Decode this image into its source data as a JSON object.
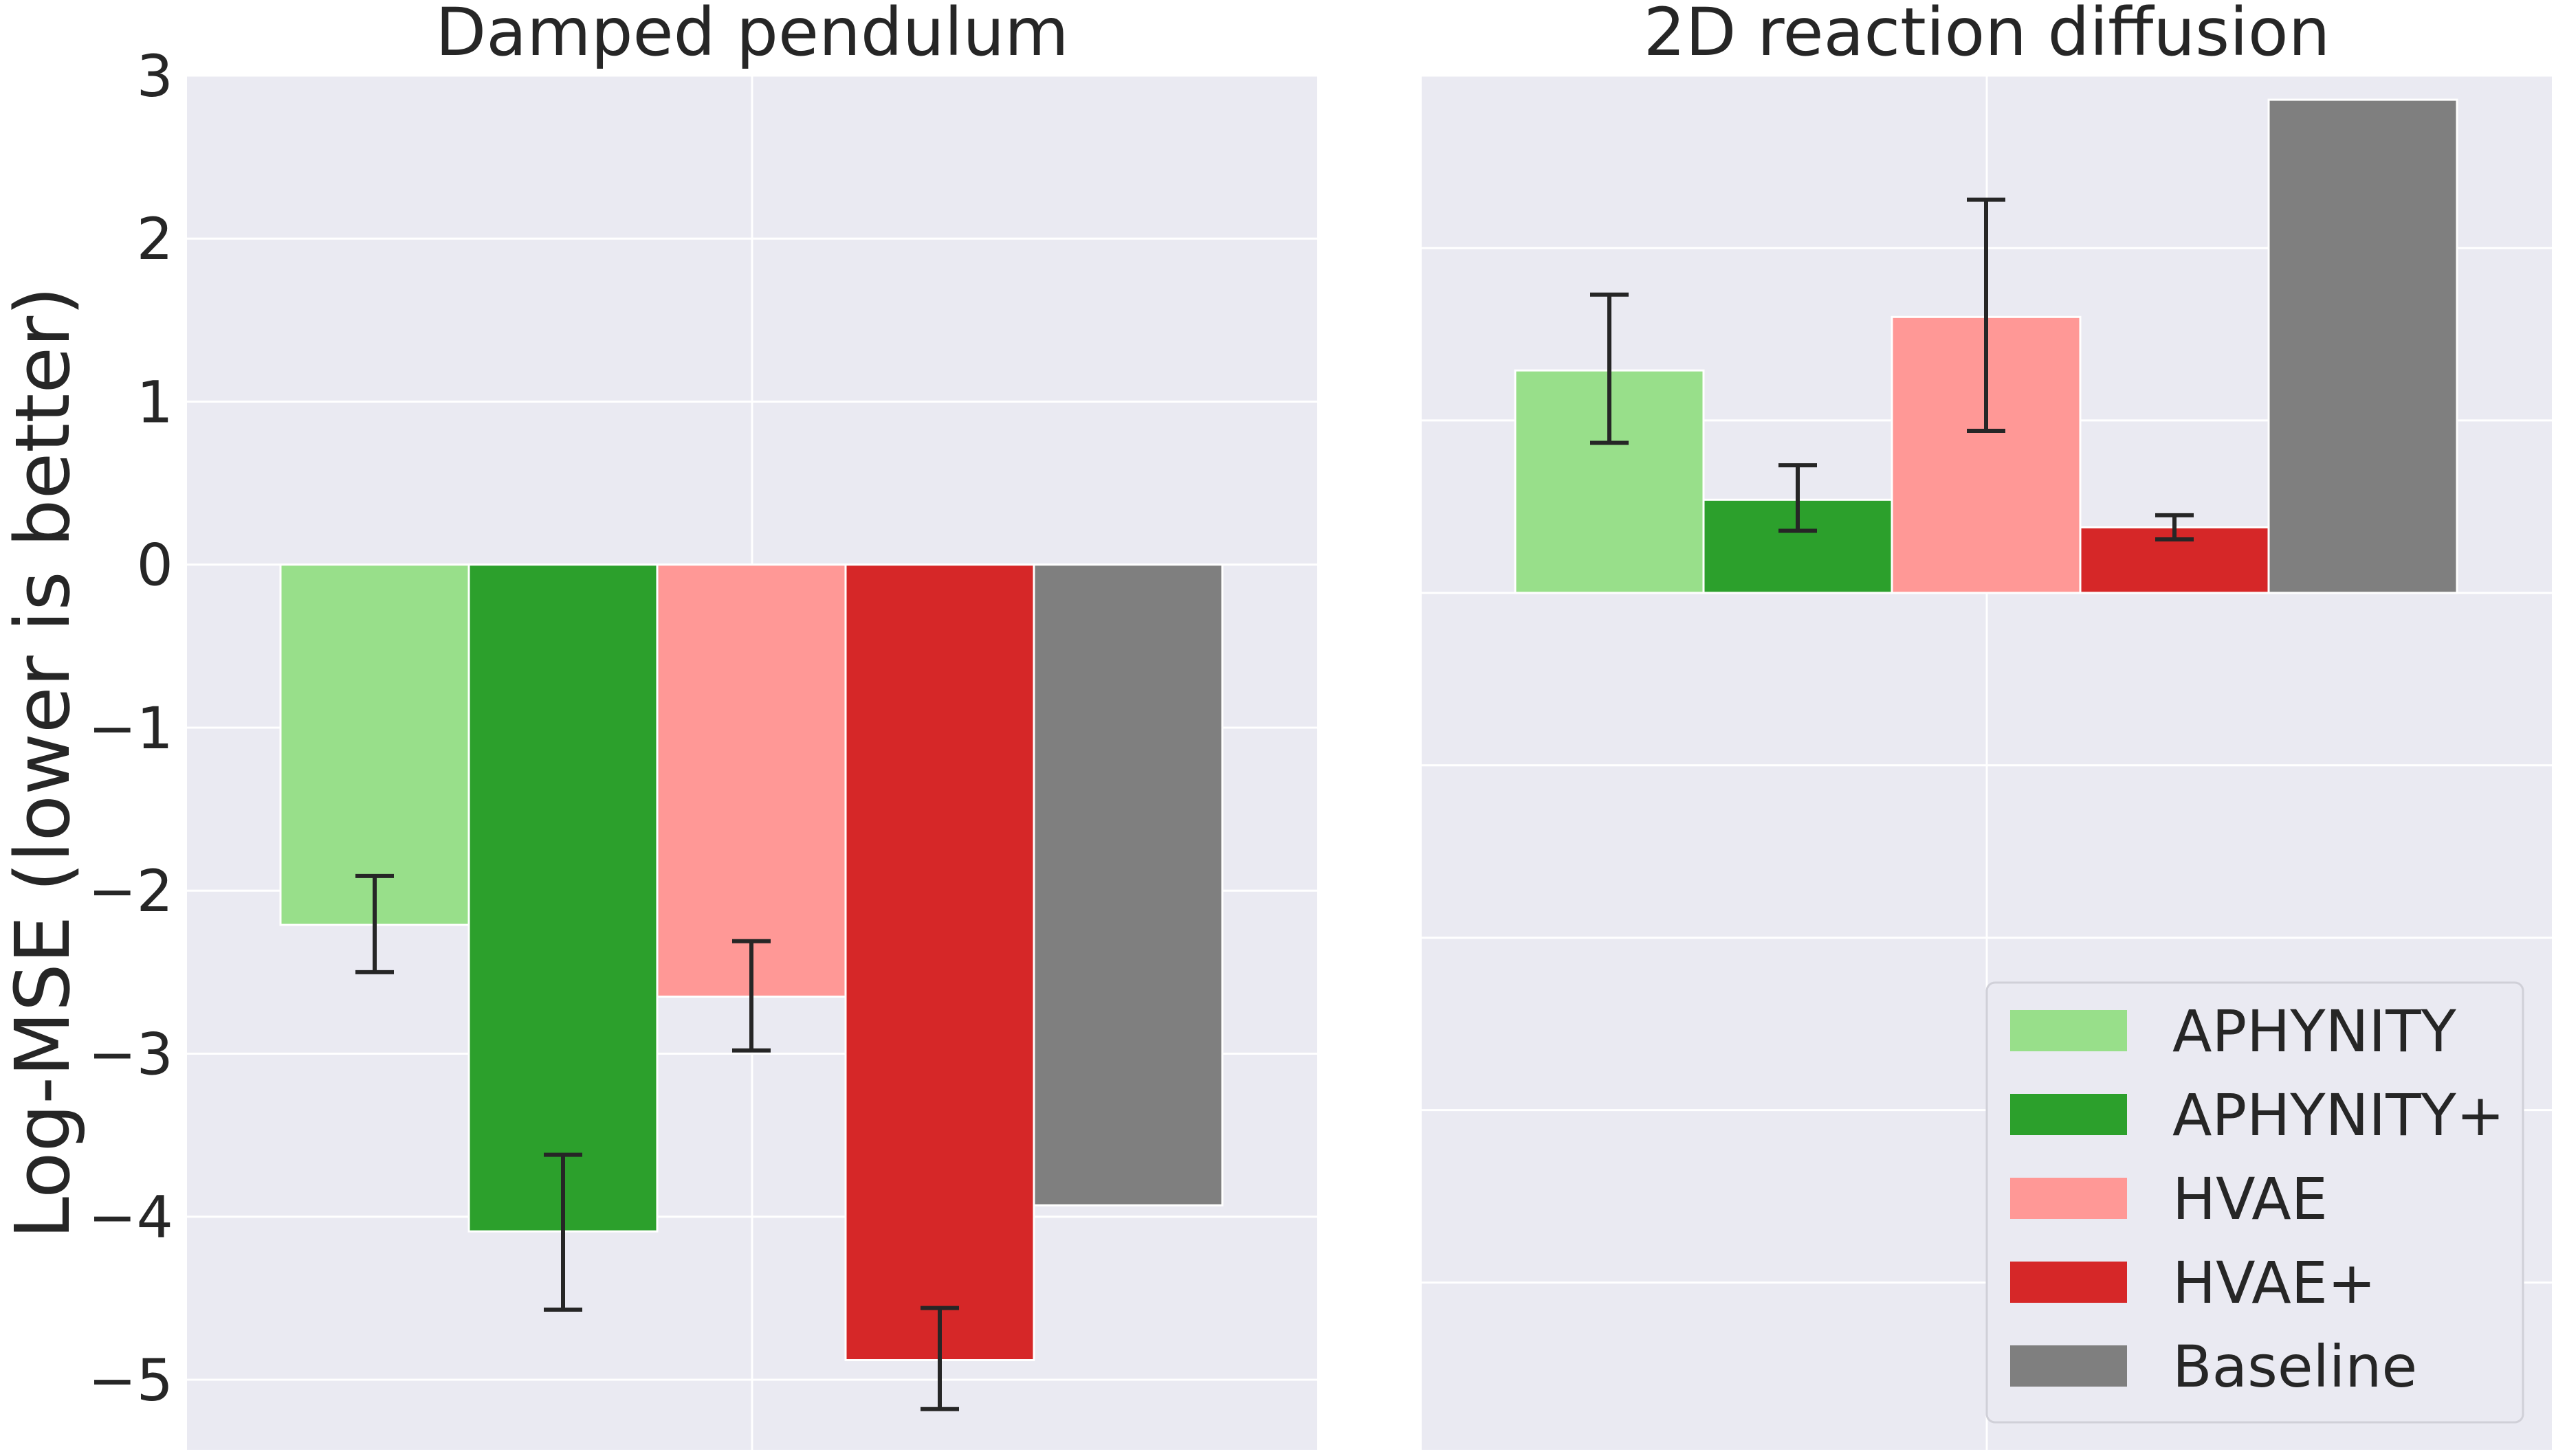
{
  "figure": {
    "ylabel": "Log-MSE (lower is better)",
    "y_ticks": [
      "3",
      "2",
      "1",
      "0",
      "−1",
      "−2",
      "−3",
      "−4",
      "−5"
    ]
  },
  "legend": {
    "placement": "lower-right",
    "entries": [
      {
        "label": "APHYNITY",
        "color": "#98df8a"
      },
      {
        "label": "APHYNITY+",
        "color": "#2ca02c"
      },
      {
        "label": "HVAE",
        "color": "#ff9896"
      },
      {
        "label": "HVAE+",
        "color": "#d62728"
      },
      {
        "label": "Baseline",
        "color": "#7f7f7f"
      }
    ]
  },
  "colors": {
    "axes_bg": "#eaeaf2",
    "grid": "#ffffff",
    "errorbar": "#262626"
  },
  "chart_data": [
    {
      "type": "bar",
      "title": "Damped pendulum",
      "ylim": [
        -5.43,
        3.0
      ],
      "grid": true,
      "series": [
        {
          "name": "APHYNITY",
          "value": -2.21,
          "err_low": -2.5,
          "err_high": -1.91
        },
        {
          "name": "APHYNITY+",
          "value": -4.09,
          "err_low": -4.57,
          "err_high": -3.62
        },
        {
          "name": "HVAE",
          "value": -2.65,
          "err_low": -2.98,
          "err_high": -2.31
        },
        {
          "name": "HVAE+",
          "value": -4.88,
          "err_low": -5.18,
          "err_high": -4.56
        },
        {
          "name": "Baseline",
          "value": -3.93,
          "err_low": null,
          "err_high": null
        }
      ]
    },
    {
      "type": "bar",
      "title": "2D reaction diffusion",
      "ylim": [
        -4.97,
        3.0
      ],
      "grid": true,
      "series": [
        {
          "name": "APHYNITY",
          "value": 1.29,
          "err_low": 0.87,
          "err_high": 1.73
        },
        {
          "name": "APHYNITY+",
          "value": 0.54,
          "err_low": 0.36,
          "err_high": 0.74
        },
        {
          "name": "HVAE",
          "value": 1.6,
          "err_low": 0.94,
          "err_high": 2.28
        },
        {
          "name": "HVAE+",
          "value": 0.38,
          "err_low": 0.31,
          "err_high": 0.45
        },
        {
          "name": "Baseline",
          "value": 2.86,
          "err_low": null,
          "err_high": null
        }
      ]
    }
  ]
}
